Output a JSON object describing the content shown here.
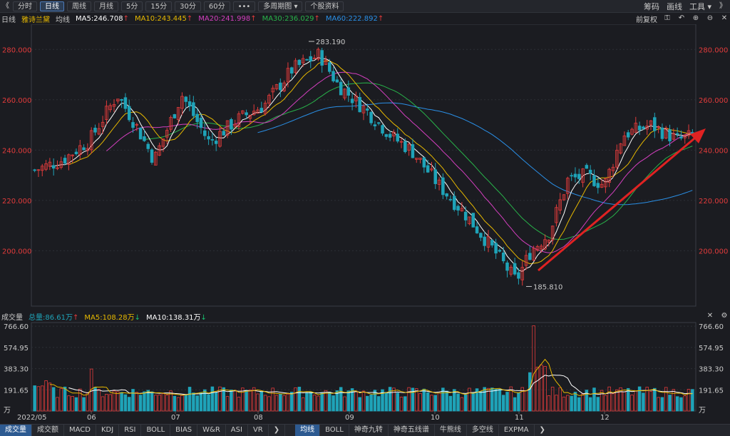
{
  "top_tabs": [
    "分时",
    "日线",
    "周线",
    "月线",
    "5分",
    "15分",
    "30分",
    "60分",
    "•••",
    "多周期图 ▾",
    "个股资料"
  ],
  "top_right": [
    "筹码",
    "画线",
    "工具 ▾"
  ],
  "stock": {
    "period": "日线",
    "name": "雅诗兰黛"
  },
  "ma": {
    "label": "均线",
    "ma5": "MA5:246.708",
    "ma10": "MA10:243.445",
    "ma20": "MA20:241.998",
    "ma30": "MA30:236.029",
    "ma60": "MA60:222.892",
    "adjust": "前复权"
  },
  "colors": {
    "up": "#e23b3b",
    "down": "#1fa3b8",
    "ma5": "#ffffff",
    "ma10": "#e6b800",
    "ma20": "#d43fbf",
    "ma30": "#28b34a",
    "ma60": "#2a8fe6",
    "arrow": "#e02222"
  },
  "price_axis": {
    "ticks": [
      "280.000",
      "260.000",
      "240.000",
      "220.000",
      "200.000"
    ]
  },
  "annotations": {
    "high": "283.190",
    "low": "185.810"
  },
  "volume": {
    "label": "成交量",
    "total": "总量:86.61万",
    "ma5": "MA5:108.28万",
    "ma10": "MA10:138.31万",
    "ticks": [
      "766.60",
      "574.95",
      "383.30",
      "191.65",
      "万"
    ]
  },
  "dates": [
    "2022/05",
    "06",
    "07",
    "08",
    "09",
    "10",
    "11",
    "12"
  ],
  "bottom_tabs": [
    "成交量",
    "成交额",
    "MACD",
    "KDJ",
    "RSI",
    "BOLL",
    "BIAS",
    "W&R",
    "ASI",
    "VR"
  ],
  "bottom_tabs2": [
    "均线",
    "BOLL",
    "神奇九转",
    "神奇五线谱",
    "牛熊线",
    "多空线",
    "EXPMA"
  ]
}
